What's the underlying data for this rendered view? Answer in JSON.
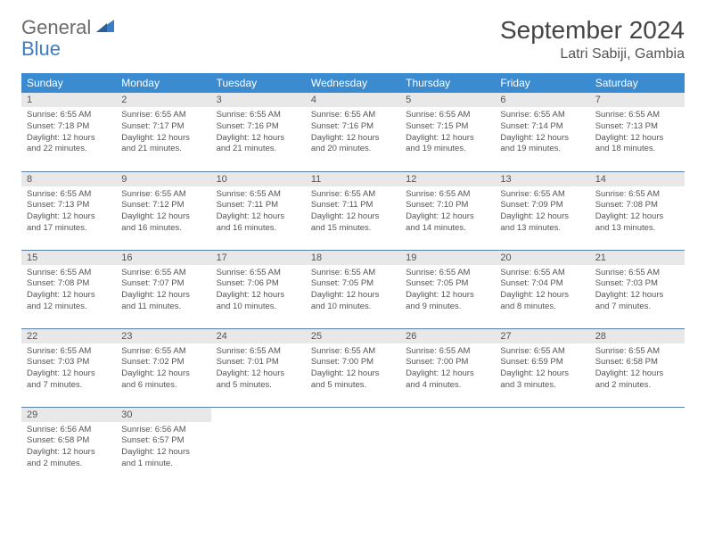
{
  "logo": {
    "word1": "General",
    "word2": "Blue"
  },
  "title": "September 2024",
  "location": "Latri Sabiji, Gambia",
  "colors": {
    "header_bg": "#3b8bd1",
    "header_text": "#ffffff",
    "daynum_bg": "#e8e8e8",
    "row_divider": "#5a7fa8",
    "logo_gray": "#6b6b6b",
    "logo_blue": "#3b7dc4",
    "text": "#555555"
  },
  "weekdays": [
    "Sunday",
    "Monday",
    "Tuesday",
    "Wednesday",
    "Thursday",
    "Friday",
    "Saturday"
  ],
  "days": [
    {
      "n": "1",
      "sunrise": "6:55 AM",
      "sunset": "7:18 PM",
      "daylight": "12 hours and 22 minutes."
    },
    {
      "n": "2",
      "sunrise": "6:55 AM",
      "sunset": "7:17 PM",
      "daylight": "12 hours and 21 minutes."
    },
    {
      "n": "3",
      "sunrise": "6:55 AM",
      "sunset": "7:16 PM",
      "daylight": "12 hours and 21 minutes."
    },
    {
      "n": "4",
      "sunrise": "6:55 AM",
      "sunset": "7:16 PM",
      "daylight": "12 hours and 20 minutes."
    },
    {
      "n": "5",
      "sunrise": "6:55 AM",
      "sunset": "7:15 PM",
      "daylight": "12 hours and 19 minutes."
    },
    {
      "n": "6",
      "sunrise": "6:55 AM",
      "sunset": "7:14 PM",
      "daylight": "12 hours and 19 minutes."
    },
    {
      "n": "7",
      "sunrise": "6:55 AM",
      "sunset": "7:13 PM",
      "daylight": "12 hours and 18 minutes."
    },
    {
      "n": "8",
      "sunrise": "6:55 AM",
      "sunset": "7:13 PM",
      "daylight": "12 hours and 17 minutes."
    },
    {
      "n": "9",
      "sunrise": "6:55 AM",
      "sunset": "7:12 PM",
      "daylight": "12 hours and 16 minutes."
    },
    {
      "n": "10",
      "sunrise": "6:55 AM",
      "sunset": "7:11 PM",
      "daylight": "12 hours and 16 minutes."
    },
    {
      "n": "11",
      "sunrise": "6:55 AM",
      "sunset": "7:11 PM",
      "daylight": "12 hours and 15 minutes."
    },
    {
      "n": "12",
      "sunrise": "6:55 AM",
      "sunset": "7:10 PM",
      "daylight": "12 hours and 14 minutes."
    },
    {
      "n": "13",
      "sunrise": "6:55 AM",
      "sunset": "7:09 PM",
      "daylight": "12 hours and 13 minutes."
    },
    {
      "n": "14",
      "sunrise": "6:55 AM",
      "sunset": "7:08 PM",
      "daylight": "12 hours and 13 minutes."
    },
    {
      "n": "15",
      "sunrise": "6:55 AM",
      "sunset": "7:08 PM",
      "daylight": "12 hours and 12 minutes."
    },
    {
      "n": "16",
      "sunrise": "6:55 AM",
      "sunset": "7:07 PM",
      "daylight": "12 hours and 11 minutes."
    },
    {
      "n": "17",
      "sunrise": "6:55 AM",
      "sunset": "7:06 PM",
      "daylight": "12 hours and 10 minutes."
    },
    {
      "n": "18",
      "sunrise": "6:55 AM",
      "sunset": "7:05 PM",
      "daylight": "12 hours and 10 minutes."
    },
    {
      "n": "19",
      "sunrise": "6:55 AM",
      "sunset": "7:05 PM",
      "daylight": "12 hours and 9 minutes."
    },
    {
      "n": "20",
      "sunrise": "6:55 AM",
      "sunset": "7:04 PM",
      "daylight": "12 hours and 8 minutes."
    },
    {
      "n": "21",
      "sunrise": "6:55 AM",
      "sunset": "7:03 PM",
      "daylight": "12 hours and 7 minutes."
    },
    {
      "n": "22",
      "sunrise": "6:55 AM",
      "sunset": "7:03 PM",
      "daylight": "12 hours and 7 minutes."
    },
    {
      "n": "23",
      "sunrise": "6:55 AM",
      "sunset": "7:02 PM",
      "daylight": "12 hours and 6 minutes."
    },
    {
      "n": "24",
      "sunrise": "6:55 AM",
      "sunset": "7:01 PM",
      "daylight": "12 hours and 5 minutes."
    },
    {
      "n": "25",
      "sunrise": "6:55 AM",
      "sunset": "7:00 PM",
      "daylight": "12 hours and 5 minutes."
    },
    {
      "n": "26",
      "sunrise": "6:55 AM",
      "sunset": "7:00 PM",
      "daylight": "12 hours and 4 minutes."
    },
    {
      "n": "27",
      "sunrise": "6:55 AM",
      "sunset": "6:59 PM",
      "daylight": "12 hours and 3 minutes."
    },
    {
      "n": "28",
      "sunrise": "6:55 AM",
      "sunset": "6:58 PM",
      "daylight": "12 hours and 2 minutes."
    },
    {
      "n": "29",
      "sunrise": "6:56 AM",
      "sunset": "6:58 PM",
      "daylight": "12 hours and 2 minutes."
    },
    {
      "n": "30",
      "sunrise": "6:56 AM",
      "sunset": "6:57 PM",
      "daylight": "12 hours and 1 minute."
    }
  ],
  "labels": {
    "sunrise": "Sunrise:",
    "sunset": "Sunset:",
    "daylight": "Daylight:"
  }
}
